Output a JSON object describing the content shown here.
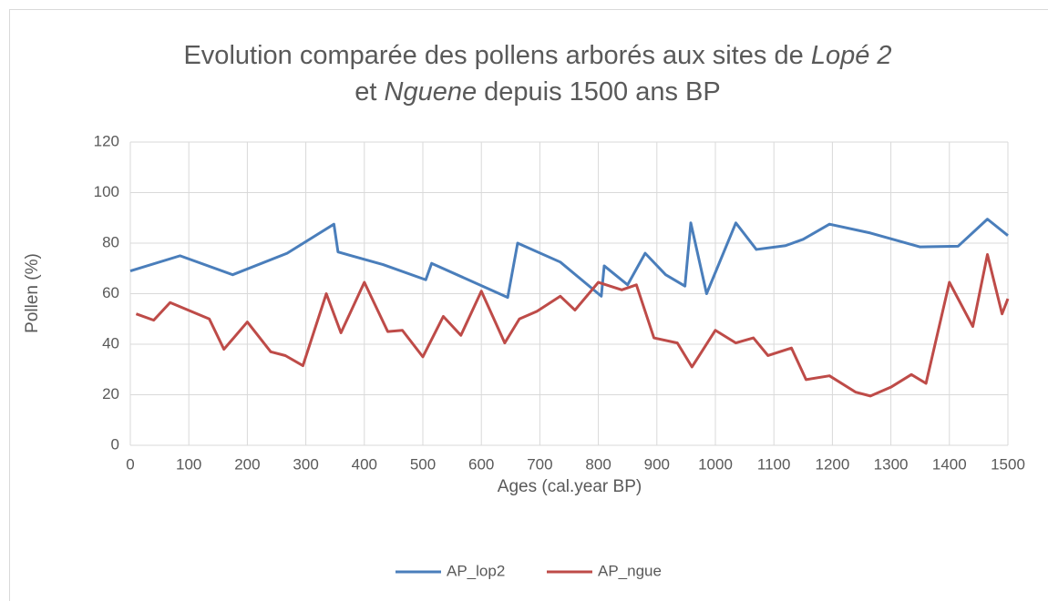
{
  "chart_data": {
    "type": "line",
    "title": [
      [
        {
          "text": "Evolution comparée des pollens arborés aux sites de ",
          "italic": false
        },
        {
          "text": "Lopé 2",
          "italic": true
        }
      ],
      [
        {
          "text": "et ",
          "italic": false
        },
        {
          "text": "Nguene",
          "italic": true
        },
        {
          "text": " depuis 1500 ans BP",
          "italic": false
        }
      ]
    ],
    "xlabel": "Ages (cal.year BP)",
    "ylabel": "Pollen (%)",
    "xlim": [
      0,
      1500
    ],
    "xticks": [
      0,
      100,
      200,
      300,
      400,
      500,
      600,
      700,
      800,
      900,
      1000,
      1100,
      1200,
      1300,
      1400,
      1500
    ],
    "ylim": [
      0,
      120
    ],
    "yticks": [
      0,
      20,
      40,
      60,
      80,
      100,
      120
    ],
    "grid": true,
    "legend": "bottom",
    "series": [
      {
        "name": "AP_lop2",
        "color": "#4a7ebb",
        "x": [
          0,
          85,
          175,
          268,
          348,
          355,
          432,
          505,
          515,
          645,
          662,
          735,
          805,
          810,
          850,
          880,
          915,
          948,
          958,
          985,
          1035,
          1070,
          1120,
          1150,
          1195,
          1265,
          1350,
          1415,
          1465,
          1500
        ],
        "values": [
          69,
          75,
          67.5,
          76,
          87.5,
          76.5,
          71.5,
          65.5,
          72,
          58.5,
          80,
          72.5,
          59,
          71,
          63.5,
          76,
          67.5,
          63,
          88,
          60,
          88,
          77.5,
          79,
          81.5,
          87.5,
          84,
          78.5,
          78.8,
          89.5,
          83
        ]
      },
      {
        "name": "AP_ngue",
        "color": "#be4b48",
        "x": [
          10,
          40,
          68,
          135,
          160,
          200,
          240,
          265,
          295,
          335,
          360,
          400,
          440,
          465,
          500,
          535,
          565,
          600,
          640,
          665,
          695,
          735,
          760,
          800,
          840,
          865,
          895,
          935,
          960,
          1000,
          1035,
          1065,
          1090,
          1130,
          1155,
          1195,
          1240,
          1265,
          1300,
          1335,
          1360,
          1400,
          1440,
          1465,
          1490,
          1500
        ],
        "values": [
          52,
          49.5,
          56.5,
          50,
          38,
          48.8,
          37,
          35.5,
          31.5,
          60,
          44.5,
          64.5,
          45,
          45.5,
          35,
          51,
          43.5,
          61,
          40.5,
          50,
          53,
          59,
          53.5,
          64.5,
          61.5,
          63.5,
          42.5,
          40.5,
          31,
          45.5,
          40.5,
          42.5,
          35.5,
          38.5,
          26,
          27.5,
          21,
          19.5,
          23,
          28,
          24.5,
          64.5,
          47,
          75.5,
          52,
          58
        ]
      }
    ]
  }
}
